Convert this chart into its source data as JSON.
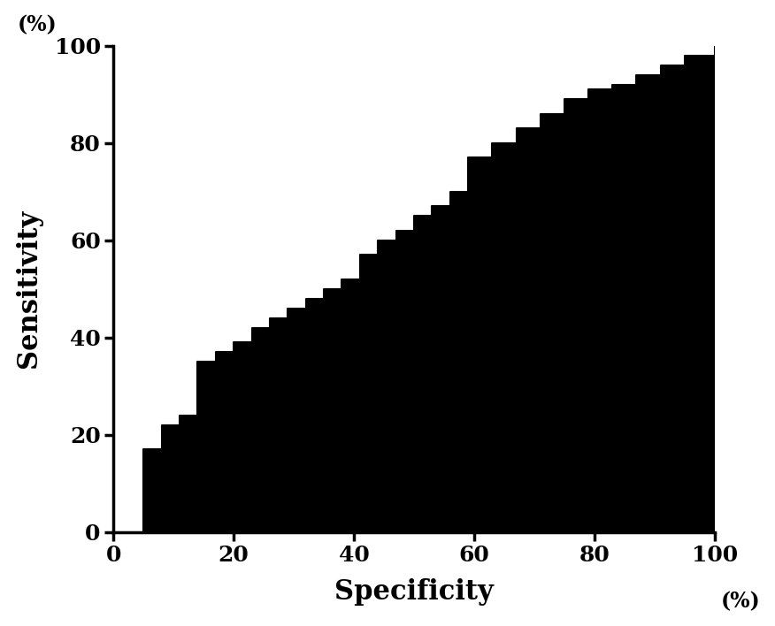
{
  "title": "",
  "xlabel": "Specificity",
  "ylabel": "Sensitivity",
  "xlabel_unit": "(%)",
  "ylabel_unit": "(%)",
  "xlim": [
    0,
    100
  ],
  "ylim": [
    0,
    100
  ],
  "xticks": [
    0,
    20,
    40,
    60,
    80,
    100
  ],
  "yticks": [
    0,
    20,
    40,
    60,
    80,
    100
  ],
  "background_color": "#ffffff",
  "fill_color": "#000000",
  "line_color": "#000000",
  "roc_x": [
    0,
    5,
    5,
    8,
    8,
    11,
    11,
    14,
    14,
    17,
    17,
    20,
    20,
    23,
    23,
    26,
    26,
    29,
    29,
    32,
    32,
    35,
    35,
    38,
    38,
    41,
    41,
    44,
    44,
    47,
    47,
    50,
    50,
    53,
    53,
    56,
    56,
    59,
    59,
    63,
    63,
    67,
    67,
    71,
    71,
    75,
    75,
    79,
    79,
    83,
    83,
    87,
    87,
    91,
    91,
    95,
    95,
    100,
    100
  ],
  "roc_y": [
    0,
    0,
    17,
    17,
    22,
    22,
    24,
    24,
    35,
    35,
    37,
    37,
    39,
    39,
    42,
    42,
    44,
    44,
    46,
    46,
    48,
    48,
    50,
    50,
    52,
    52,
    57,
    57,
    60,
    60,
    62,
    62,
    65,
    65,
    67,
    67,
    70,
    70,
    77,
    77,
    80,
    80,
    83,
    83,
    86,
    86,
    89,
    89,
    91,
    91,
    92,
    92,
    94,
    94,
    96,
    96,
    98,
    98,
    100
  ],
  "axis_linewidth": 2.5,
  "label_fontsize": 22,
  "tick_fontsize": 18,
  "unit_fontsize": 17,
  "figsize": [
    8.76,
    7.08
  ],
  "dpi": 100
}
